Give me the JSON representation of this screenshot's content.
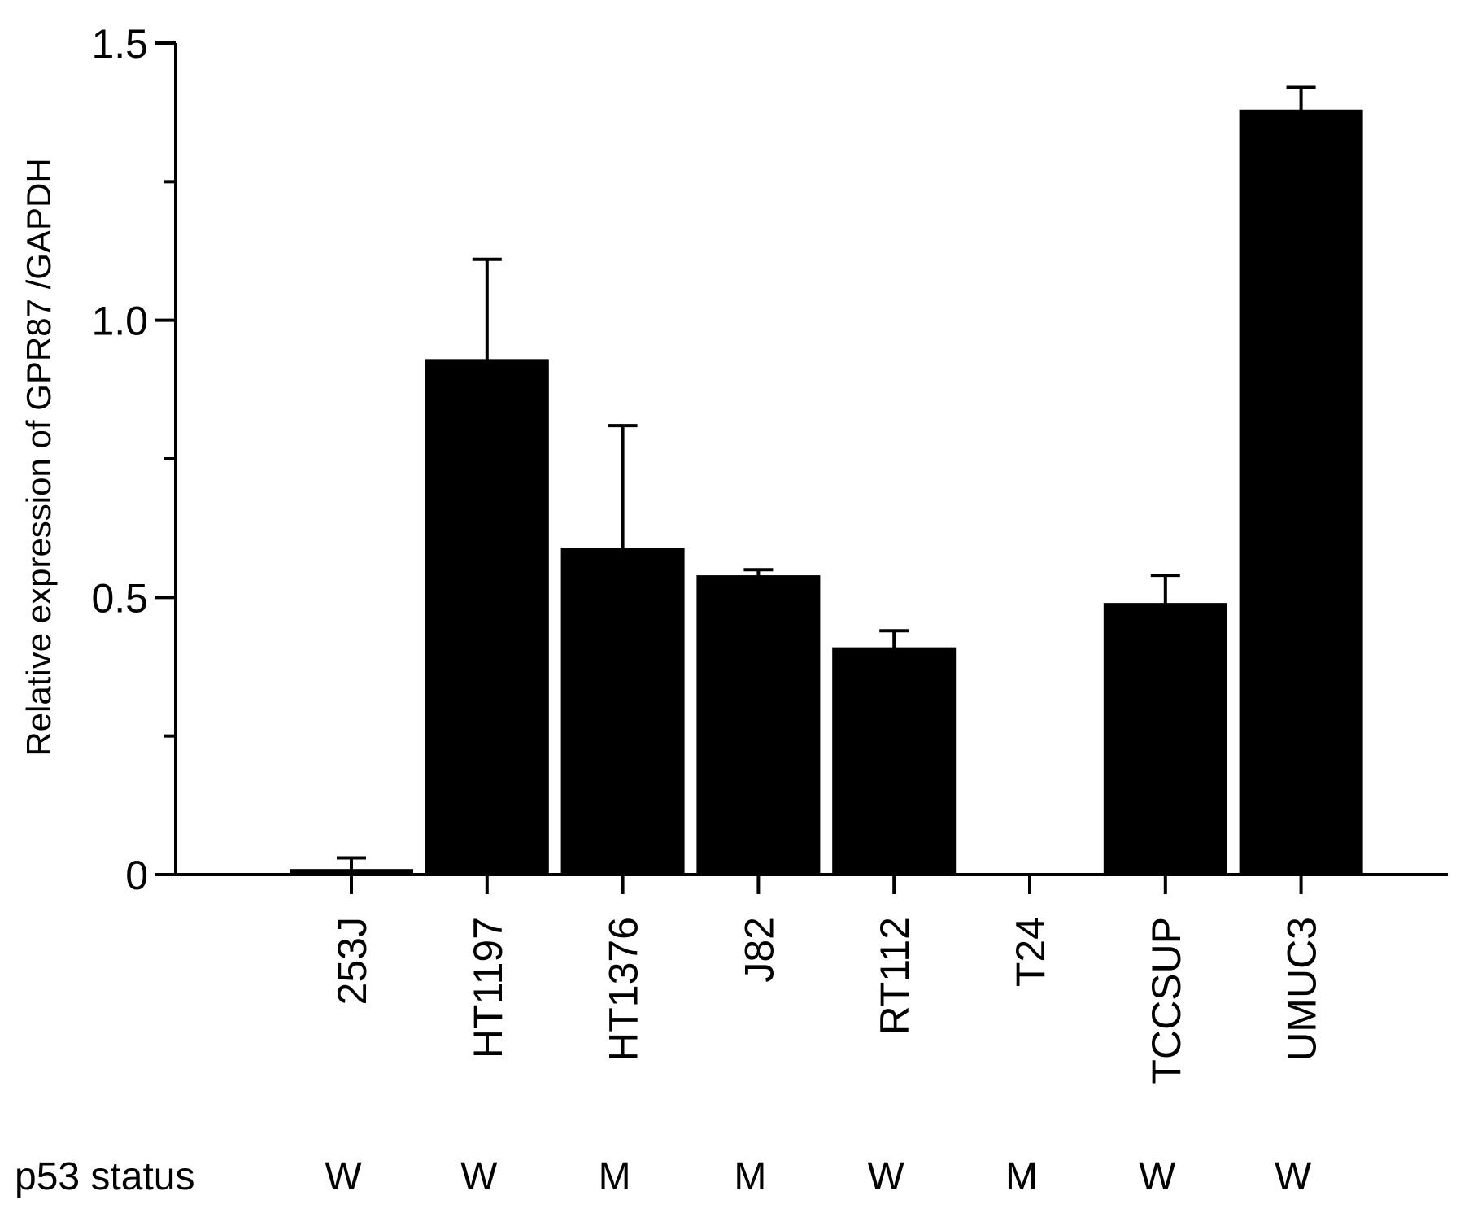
{
  "chart_data": {
    "type": "bar",
    "title": "",
    "xlabel": "",
    "ylabel": "Relative expression of GPR87 /GAPDH",
    "ylim": [
      0,
      1.5
    ],
    "yticks_major": [
      0,
      0.5,
      1.0,
      1.5
    ],
    "yticks_major_labels": [
      "0",
      "0.5",
      "1.0",
      "1.5"
    ],
    "yticks_minor": [
      0.25,
      0.75,
      1.25
    ],
    "grid": false,
    "legend": "none",
    "bar_color": "#000000",
    "categories": [
      "253J",
      "HT1197",
      "HT1376",
      "J82",
      "RT112",
      "T24",
      "TCCSUP",
      "UMUC3"
    ],
    "values": [
      0.01,
      0.93,
      0.59,
      0.54,
      0.41,
      0.0,
      0.49,
      1.38
    ],
    "error_upper": [
      0.03,
      1.11,
      0.81,
      0.55,
      0.44,
      0.0,
      0.54,
      1.42
    ],
    "row_label": "p53 status",
    "p53_status": [
      "W",
      "W",
      "M",
      "M",
      "W",
      "M",
      "W",
      "W"
    ]
  }
}
